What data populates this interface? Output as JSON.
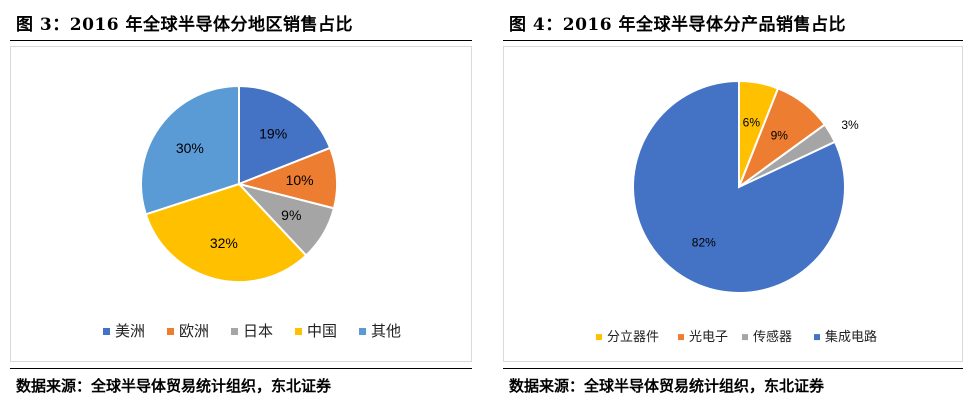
{
  "figures": [
    {
      "title": "图 3：2016 年全球半导体分地区销售占比",
      "source": "数据来源：全球半导体贸易统计组织，东北证券"
    },
    {
      "title": "图 4：2016 年全球半导体分产品销售占比",
      "source": "数据来源：全球半导体贸易统计组织，东北证券"
    }
  ],
  "chart_data": [
    {
      "type": "pie",
      "categories": [
        "美洲",
        "欧洲",
        "日本",
        "中国",
        "其他"
      ],
      "values": [
        19,
        10,
        9,
        32,
        30
      ],
      "labels": [
        "19%",
        "10%",
        "9%",
        "32%",
        "30%"
      ],
      "colors": [
        "#4472C4",
        "#ED7D31",
        "#A5A5A5",
        "#FFC000",
        "#5B9BD5"
      ],
      "label_colors": [
        "#000000",
        "#000000",
        "#000000",
        "#000000",
        "#000000"
      ],
      "legend_position": "bottom"
    },
    {
      "type": "pie",
      "categories": [
        "分立器件",
        "光电子",
        "传感器",
        "集成电路"
      ],
      "values": [
        6,
        9,
        3,
        82
      ],
      "labels": [
        "6%",
        "9%",
        "3%",
        "82%"
      ],
      "colors": [
        "#FFC000",
        "#ED7D31",
        "#A5A5A5",
        "#4472C4"
      ],
      "label_colors": [
        "#000000",
        "#000000",
        "#000000",
        "#000000"
      ],
      "legend_position": "bottom"
    }
  ]
}
